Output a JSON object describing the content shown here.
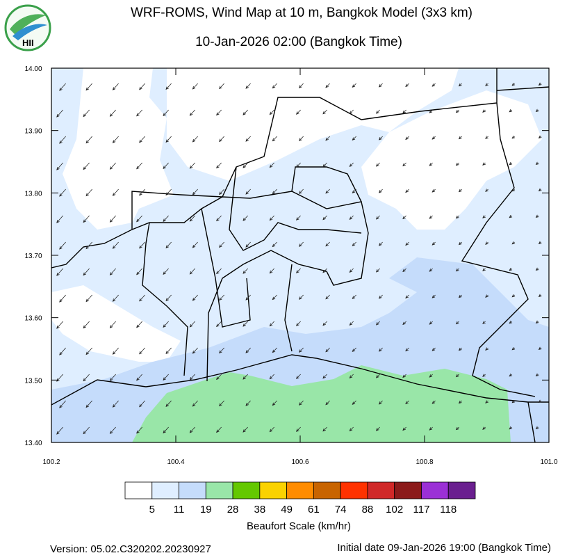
{
  "header": {
    "title": "WRF-ROMS, Wind Map at 10 m, Bangkok Model (3x3 km)",
    "subtitle": "10-Jan-2026 02:00 (Bangkok Time)",
    "logo": "HII"
  },
  "map": {
    "xlim": [
      100.2,
      101.0
    ],
    "ylim": [
      13.4,
      14.0
    ],
    "xticks": [
      100.2,
      100.4,
      100.6,
      100.8,
      {
        "value": 101.0,
        "label": "101.0"
      }
    ],
    "yticks": [
      {
        "value": 13.4,
        "label": "13.40"
      },
      {
        "value": 13.5,
        "label": "13.50"
      },
      {
        "value": 13.6,
        "label": "13.60"
      },
      {
        "value": 13.7,
        "label": "13.70"
      },
      {
        "value": 13.8,
        "label": "13.80"
      },
      {
        "value": 13.9,
        "label": "13.90"
      },
      {
        "value": 14.0,
        "label": "14.00"
      }
    ]
  },
  "legend": {
    "title": "Beaufort Scale (km/hr)",
    "colors": [
      "#ffffff",
      "#dfeeff",
      "#c5dcfb",
      "#99e6a8",
      "#64c800",
      "#fad200",
      "#ff8c00",
      "#c86400",
      "#ff3200",
      "#d02828",
      "#8b1a1a",
      "#9b30d6",
      "#6a1f8f"
    ],
    "labels": [
      5,
      11,
      19,
      28,
      38,
      49,
      61,
      74,
      88,
      102,
      117,
      118
    ]
  },
  "footer": {
    "version": "Version: 05.02.C320202.20230927",
    "initial": "Initial date 09-Jan-2026 19:00 (Bangkok Time)"
  }
}
